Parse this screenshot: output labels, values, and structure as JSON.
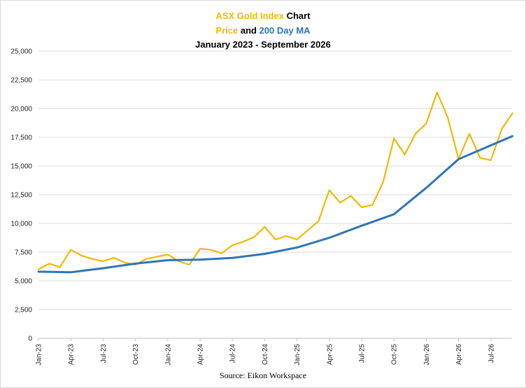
{
  "chart_data": {
    "type": "line",
    "title_parts": {
      "line1": [
        {
          "text": "ASX Gold Index",
          "color": "#F2B705"
        },
        {
          "text": " Chart",
          "color": "#000000"
        }
      ],
      "line2": [
        {
          "text": "Price",
          "color": "#F2B705"
        },
        {
          "text": " and ",
          "color": "#000000"
        },
        {
          "text": "200 Day MA",
          "color": "#2E75B6"
        }
      ],
      "line3": "January 2023 - September 2026"
    },
    "source": "Source: Eikon Workspace",
    "ylim": [
      0,
      25000
    ],
    "y_ticks": [
      "0",
      "2,500",
      "5,000",
      "7,500",
      "10,000",
      "12,500",
      "15,000",
      "17,500",
      "20,000",
      "22,500",
      "25,000"
    ],
    "x_ticks": [
      "Jan-23",
      "Apr-23",
      "Jul-23",
      "Oct-23",
      "Jan-24",
      "Apr-24",
      "Jul-24",
      "Oct-24",
      "Jan-25",
      "Apr-25",
      "Jul-25",
      "Oct-25",
      "Jan-26",
      "Apr-26",
      "Jul-26"
    ],
    "grid": "horizontal",
    "series": [
      {
        "color": "#F2B705",
        "x": [
          "Jan-23",
          "Feb-23",
          "Mar-23",
          "Apr-23",
          "May-23",
          "Jun-23",
          "Jul-23",
          "Aug-23",
          "Sep-23",
          "Oct-23",
          "Nov-23",
          "Dec-23",
          "Jan-24",
          "Feb-24",
          "Mar-24",
          "Apr-24",
          "May-24",
          "Jun-24",
          "Jul-24",
          "Aug-24",
          "Sep-24",
          "Oct-24",
          "Nov-24",
          "Dec-24",
          "Jan-25",
          "Feb-25",
          "Mar-25",
          "Apr-25",
          "May-25",
          "Jun-25",
          "Jul-25",
          "Aug-25",
          "Sep-25",
          "Oct-25",
          "Nov-25",
          "Dec-25",
          "Jan-26",
          "Feb-26",
          "Mar-26",
          "Apr-26",
          "May-26",
          "Jun-26",
          "Jul-26",
          "Aug-26",
          "Sep-26"
        ],
        "values": [
          6000,
          6500,
          6200,
          7700,
          7200,
          6900,
          6700,
          7000,
          6600,
          6400,
          6900,
          7100,
          7300,
          6700,
          6400,
          7800,
          7700,
          7400,
          8100,
          8400,
          8800,
          9700,
          8600,
          8900,
          8600,
          9400,
          10200,
          12900,
          11800,
          12400,
          11400,
          11600,
          13600,
          17400,
          16000,
          17800,
          18700,
          21400,
          19200,
          15600,
          17800,
          15700,
          15500,
          18200,
          19600
        ]
      },
      {
        "color": "#2E75B6",
        "x": [
          "Jan-23",
          "Apr-23",
          "Jul-23",
          "Oct-23",
          "Jan-24",
          "Apr-24",
          "Jul-24",
          "Oct-24",
          "Jan-25",
          "Apr-25",
          "Jul-25",
          "Oct-25",
          "Jan-26",
          "Apr-26",
          "Jul-26",
          "Sep-26"
        ],
        "values": [
          5800,
          5750,
          6100,
          6500,
          6800,
          6850,
          7000,
          7350,
          7900,
          8750,
          9800,
          10800,
          13100,
          15600,
          16800,
          17600
        ]
      }
    ]
  }
}
